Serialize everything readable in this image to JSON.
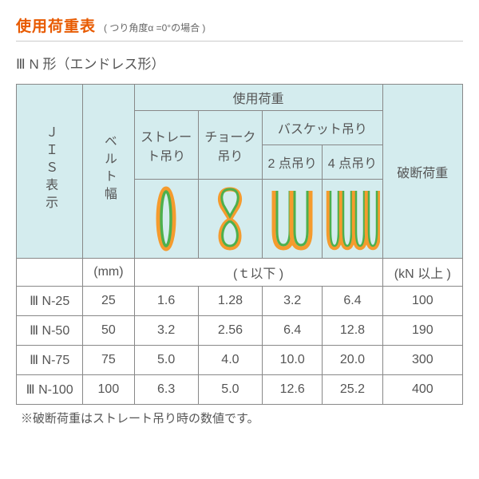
{
  "title": "使用荷重表",
  "title_sub": "( つり角度α =0°の場合 )",
  "subtitle": "Ⅲ N 形（エンドレス形）",
  "headers": {
    "jis": "ＪＩＳ表示",
    "belt": "ベルト幅",
    "load_group": "使用荷重",
    "straight": "ストレート吊り",
    "choke": "チョーク吊り",
    "basket_group": "バスケット吊り",
    "basket2": "2 点吊り",
    "basket4": "4 点吊り",
    "break": "破断荷重"
  },
  "units": {
    "belt": "(mm)",
    "load": "(ｔ以下 )",
    "break": "(kN 以上 )"
  },
  "rows": [
    {
      "jis": "Ⅲ N-25",
      "belt": "25",
      "straight": "1.6",
      "choke": "1.28",
      "b2": "3.2",
      "b4": "6.4",
      "break": "100"
    },
    {
      "jis": "Ⅲ N-50",
      "belt": "50",
      "straight": "3.2",
      "choke": "2.56",
      "b2": "6.4",
      "b4": "12.8",
      "break": "190"
    },
    {
      "jis": "Ⅲ N-75",
      "belt": "75",
      "straight": "5.0",
      "choke": "4.0",
      "b2": "10.0",
      "b4": "20.0",
      "break": "300"
    },
    {
      "jis": "Ⅲ N-100",
      "belt": "100",
      "straight": "6.3",
      "choke": "5.0",
      "b2": "12.6",
      "b4": "25.2",
      "break": "400"
    }
  ],
  "footnote": "※破断荷重はストレート吊り時の数値です。",
  "colors": {
    "accent": "#e85a00",
    "header_bg": "#d4ecee",
    "border": "#888888",
    "text": "#555555",
    "sling_orange": "#f59b2d",
    "sling_green": "#4db04d"
  }
}
